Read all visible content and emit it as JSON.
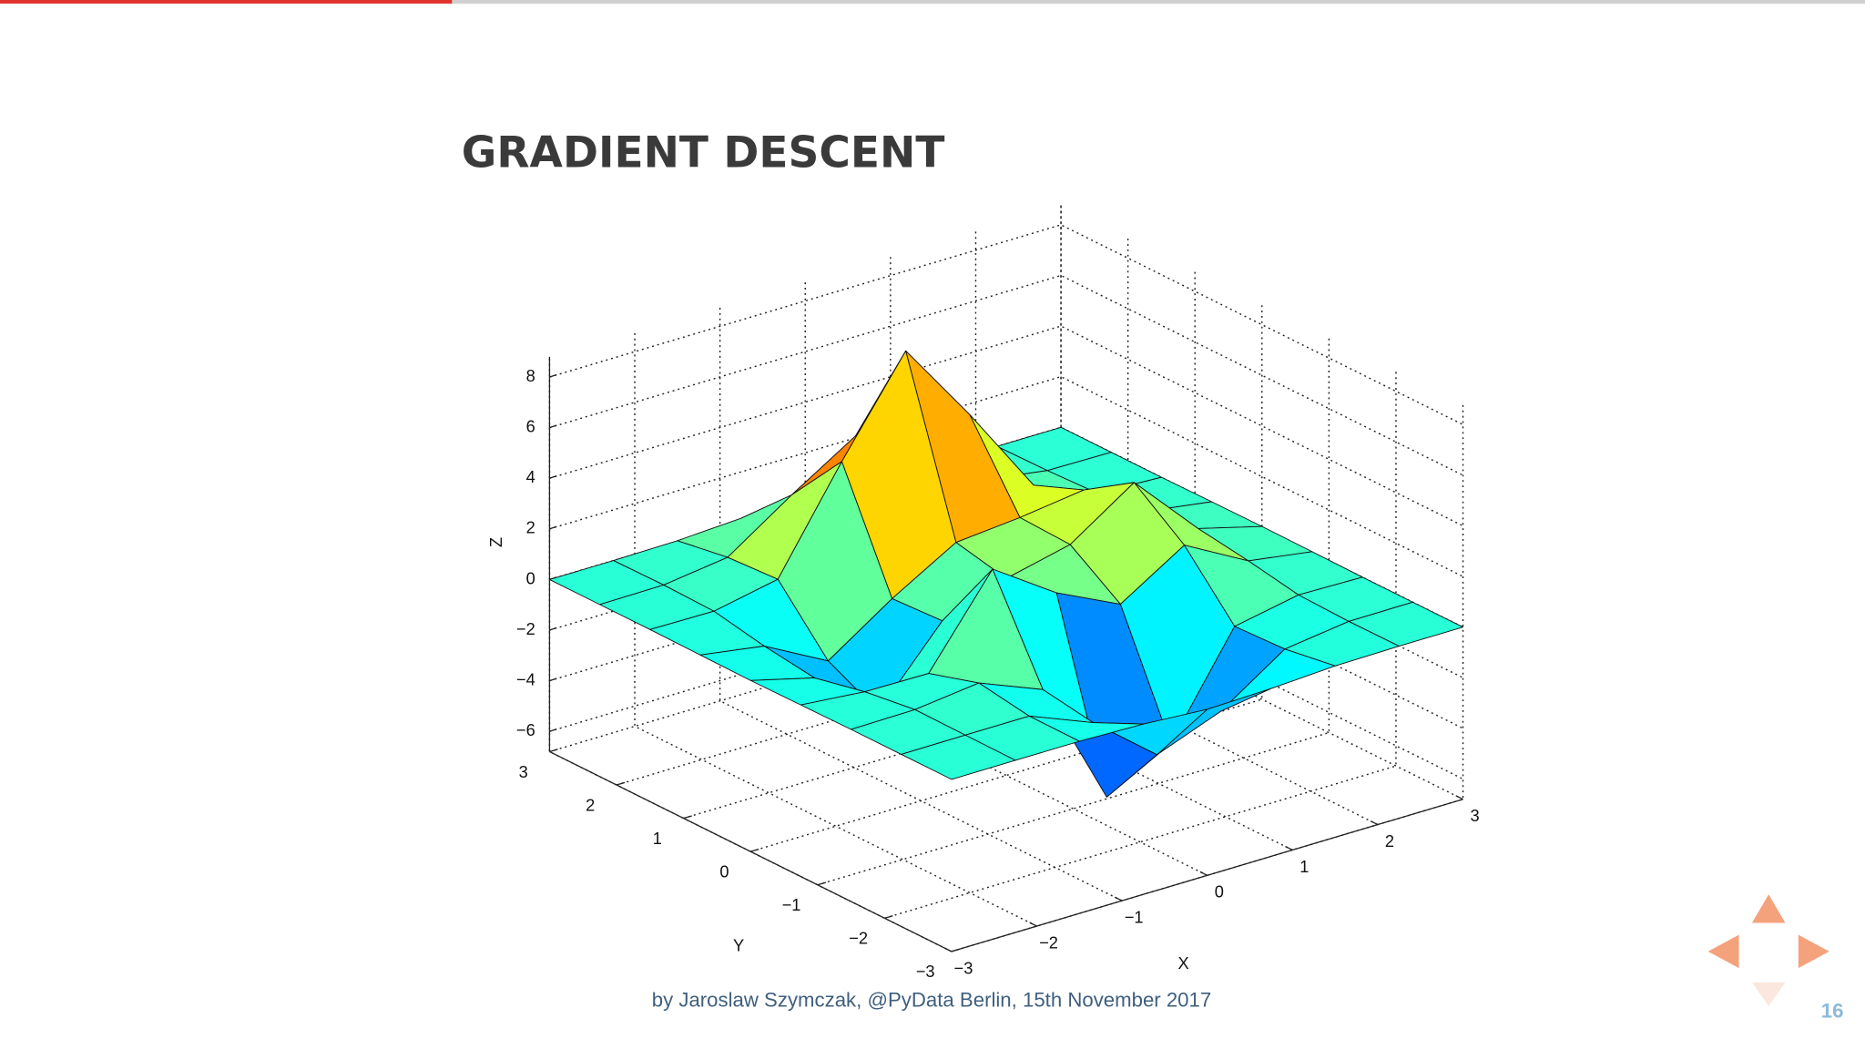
{
  "slide": {
    "title": "GRADIENT DESCENT",
    "footer": "by Jaroslaw Szymczak, @PyData Berlin, 15th November 2017",
    "page_number": 16
  },
  "chart_data": {
    "type": "surface",
    "xlabel": "X",
    "ylabel": "Y",
    "zlabel": "Z",
    "x": [
      -3,
      -2.25,
      -1.5,
      -0.75,
      0,
      0.75,
      1.5,
      2.25,
      3
    ],
    "y": [
      -3,
      -2.25,
      -1.5,
      -0.75,
      0,
      0.75,
      1.5,
      2.25,
      3
    ],
    "z": [
      [
        0,
        0,
        0,
        -0.07,
        -0.24,
        -0.17,
        -0.03,
        0,
        0
      ],
      [
        0,
        0.01,
        0.01,
        -1.0,
        -3.02,
        -2.05,
        -0.35,
        -0.01,
        0
      ],
      [
        0,
        0.03,
        0.33,
        -0.68,
        -5.68,
        -4.32,
        -0.44,
        0.05,
        0
      ],
      [
        -0.02,
        -0.25,
        -0.28,
        3.09,
        1.4,
        0.2,
        1.78,
        0.41,
        0.02
      ],
      [
        -0.04,
        -0.69,
        -2.77,
        0.06,
        0.98,
        1.57,
        3.27,
        0.7,
        0.03
      ],
      [
        -0.02,
        -0.42,
        -1.76,
        -0.05,
        1.42,
        1.65,
        1.99,
        0.4,
        0.02
      ],
      [
        0,
        -0.03,
        0.48,
        4.38,
        8.0,
        4.73,
        1.19,
        0.12,
        0
      ],
      [
        0,
        0.02,
        0.36,
        2.07,
        3.65,
        2.09,
        0.41,
        0.03,
        0
      ],
      [
        0,
        0,
        0.03,
        0.17,
        0.3,
        0.17,
        0.03,
        0,
        0
      ]
    ],
    "xlim": [
      -3,
      3
    ],
    "ylim": [
      -3,
      3
    ],
    "zlim": [
      -6.8,
      8.8
    ],
    "xticks": [
      {
        "value": -3,
        "label": "−3"
      },
      {
        "value": -2,
        "label": "−2"
      },
      {
        "value": -1,
        "label": "−1"
      },
      0,
      1,
      2,
      3
    ],
    "yticks": [
      {
        "value": -3,
        "label": "−3"
      },
      {
        "value": -2,
        "label": "−2"
      },
      {
        "value": -1,
        "label": "−1"
      },
      0,
      1,
      2,
      3
    ],
    "zticks": [
      {
        "value": -6,
        "label": "−6"
      },
      {
        "value": -4,
        "label": "−4"
      },
      {
        "value": -2,
        "label": "−2"
      },
      0,
      2,
      4,
      6,
      8
    ],
    "grid": true,
    "colormap": "jet"
  }
}
